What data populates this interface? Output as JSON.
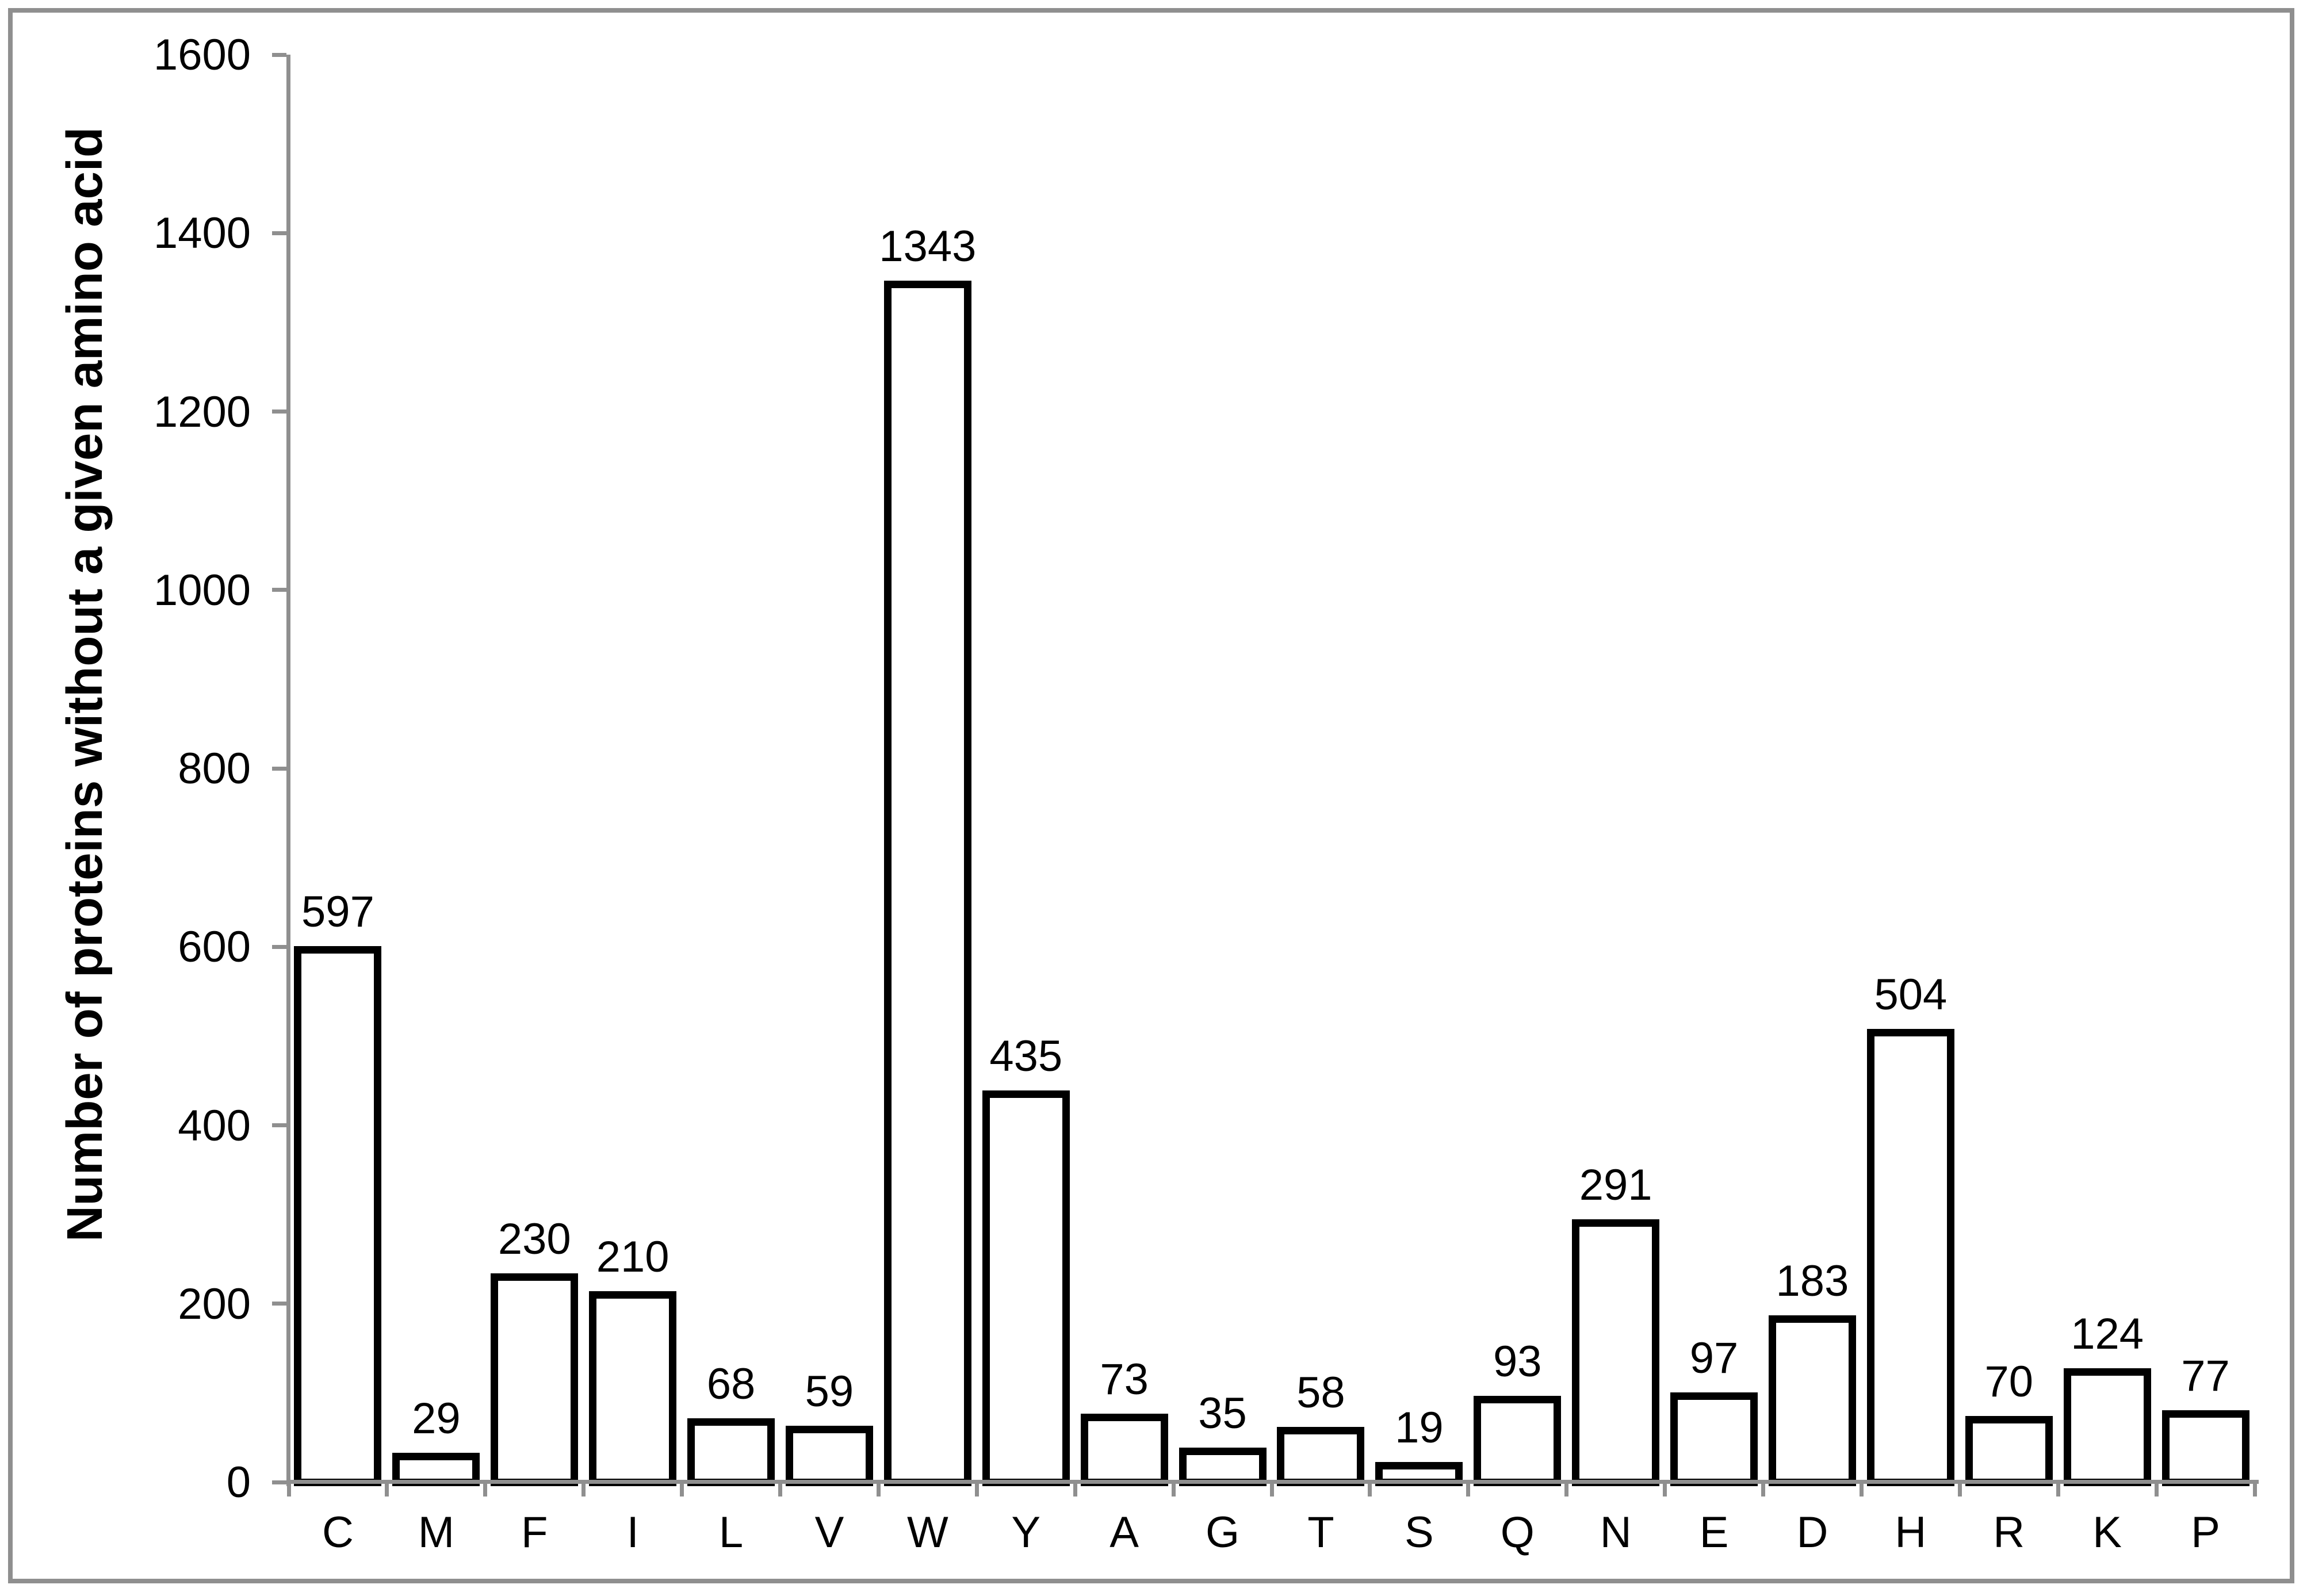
{
  "chart_data": {
    "type": "bar",
    "title": "",
    "categories": [
      "C",
      "M",
      "F",
      "I",
      "L",
      "V",
      "W",
      "Y",
      "A",
      "G",
      "T",
      "S",
      "Q",
      "N",
      "E",
      "D",
      "H",
      "R",
      "K",
      "P"
    ],
    "values": [
      597,
      29,
      230,
      210,
      68,
      59,
      1343,
      435,
      73,
      35,
      58,
      19,
      93,
      291,
      97,
      183,
      504,
      70,
      124,
      77
    ],
    "xlabel": "",
    "ylabel": "Number of proteins without a given amino acid",
    "ylim": [
      0,
      1600
    ],
    "y_ticks": [
      0,
      200,
      400,
      600,
      800,
      1000,
      1200,
      1400,
      1600
    ],
    "grid": false,
    "legend": false,
    "data_labels": true
  },
  "colors": {
    "axis": "#8f8f8f",
    "frame": "#8f8f8f",
    "text": "#000000",
    "bar_fill": "#ffffff",
    "bar_border": "#000000",
    "background": "#ffffff"
  }
}
